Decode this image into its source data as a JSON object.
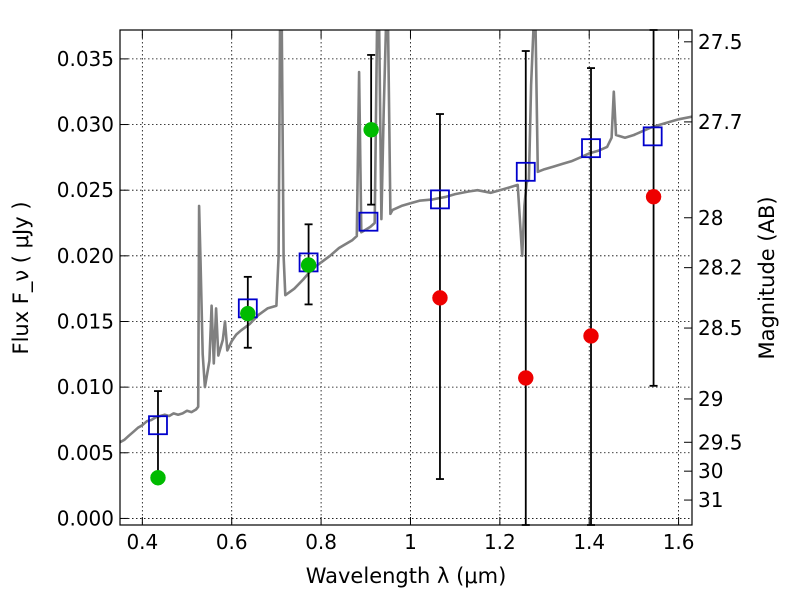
{
  "chart_data": {
    "type": "scatter",
    "xlabel": "Wavelength  λ (μm)",
    "ylabel": "Flux  F_ν  ( μJy )",
    "ylabel_right": "Magnitude (AB)",
    "xlim": [
      0.35,
      1.63
    ],
    "ylim": [
      -0.0005,
      0.0372
    ],
    "grid": true,
    "legend": "none",
    "x_ticks": [
      0.4,
      0.6,
      0.8,
      1.0,
      1.2,
      1.4,
      1.6
    ],
    "x_tick_labels": [
      "0.4",
      "0.6",
      "0.8",
      "1",
      "1.2",
      "1.4",
      "1.6"
    ],
    "y_ticks": [
      0.0,
      0.005,
      0.01,
      0.015,
      0.02,
      0.025,
      0.03,
      0.035
    ],
    "y_tick_labels": [
      "0.000",
      "0.005",
      "0.010",
      "0.015",
      "0.020",
      "0.025",
      "0.030",
      "0.035"
    ],
    "right_ticks": [
      {
        "label": "27.5",
        "flux": 0.0363
      },
      {
        "label": "27.7",
        "flux": 0.0302
      },
      {
        "label": "28",
        "flux": 0.0229
      },
      {
        "label": "28.2",
        "flux": 0.0191
      },
      {
        "label": "28.5",
        "flux": 0.0145
      },
      {
        "label": "29",
        "flux": 0.0091
      },
      {
        "label": "29.5",
        "flux": 0.0058
      },
      {
        "label": "30",
        "flux": 0.0036
      },
      {
        "label": "31",
        "flux": 0.0014
      }
    ],
    "series": [
      {
        "kind": "template_spectrum",
        "color": "#808080",
        "points": [
          [
            0.35,
            0.0058
          ],
          [
            0.36,
            0.006
          ],
          [
            0.37,
            0.0063
          ],
          [
            0.38,
            0.0066
          ],
          [
            0.39,
            0.0069
          ],
          [
            0.4,
            0.0071
          ],
          [
            0.41,
            0.0074
          ],
          [
            0.42,
            0.0075
          ],
          [
            0.43,
            0.0077
          ],
          [
            0.44,
            0.0078
          ],
          [
            0.45,
            0.0079
          ],
          [
            0.46,
            0.0078
          ],
          [
            0.47,
            0.008
          ],
          [
            0.48,
            0.0079
          ],
          [
            0.49,
            0.008
          ],
          [
            0.5,
            0.0082
          ],
          [
            0.51,
            0.0081
          ],
          [
            0.52,
            0.0083
          ],
          [
            0.525,
            0.0085
          ],
          [
            0.527,
            0.0238
          ],
          [
            0.53,
            0.02
          ],
          [
            0.535,
            0.0125
          ],
          [
            0.54,
            0.01
          ],
          [
            0.55,
            0.012
          ],
          [
            0.555,
            0.0162
          ],
          [
            0.56,
            0.0118
          ],
          [
            0.565,
            0.016
          ],
          [
            0.57,
            0.0124
          ],
          [
            0.58,
            0.0136
          ],
          [
            0.585,
            0.015
          ],
          [
            0.59,
            0.0128
          ],
          [
            0.6,
            0.0135
          ],
          [
            0.61,
            0.014
          ],
          [
            0.62,
            0.0143
          ],
          [
            0.64,
            0.0148
          ],
          [
            0.66,
            0.0155
          ],
          [
            0.68,
            0.016
          ],
          [
            0.7,
            0.0162
          ],
          [
            0.705,
            0.02
          ],
          [
            0.708,
            0.0372
          ],
          [
            0.712,
            0.0372
          ],
          [
            0.716,
            0.02
          ],
          [
            0.72,
            0.017
          ],
          [
            0.74,
            0.0175
          ],
          [
            0.76,
            0.0182
          ],
          [
            0.78,
            0.019
          ],
          [
            0.8,
            0.0195
          ],
          [
            0.82,
            0.02
          ],
          [
            0.84,
            0.0206
          ],
          [
            0.86,
            0.021
          ],
          [
            0.87,
            0.0212
          ],
          [
            0.88,
            0.0215
          ],
          [
            0.885,
            0.034
          ],
          [
            0.89,
            0.0218
          ],
          [
            0.9,
            0.022
          ],
          [
            0.91,
            0.0222
          ],
          [
            0.92,
            0.0225
          ],
          [
            0.925,
            0.0372
          ],
          [
            0.93,
            0.0372
          ],
          [
            0.935,
            0.0228
          ],
          [
            0.94,
            0.031
          ],
          [
            0.945,
            0.0372
          ],
          [
            0.95,
            0.0372
          ],
          [
            0.955,
            0.0232
          ],
          [
            0.96,
            0.0235
          ],
          [
            0.98,
            0.0238
          ],
          [
            1.0,
            0.024
          ],
          [
            1.02,
            0.0242
          ],
          [
            1.05,
            0.0243
          ],
          [
            1.08,
            0.0245
          ],
          [
            1.1,
            0.0247
          ],
          [
            1.13,
            0.0249
          ],
          [
            1.15,
            0.025
          ],
          [
            1.18,
            0.0248
          ],
          [
            1.2,
            0.025
          ],
          [
            1.22,
            0.0252
          ],
          [
            1.24,
            0.0254
          ],
          [
            1.25,
            0.02
          ],
          [
            1.255,
            0.0238
          ],
          [
            1.26,
            0.0256
          ],
          [
            1.265,
            0.0258
          ],
          [
            1.27,
            0.033
          ],
          [
            1.275,
            0.0372
          ],
          [
            1.28,
            0.0372
          ],
          [
            1.285,
            0.0264
          ],
          [
            1.3,
            0.0266
          ],
          [
            1.32,
            0.0268
          ],
          [
            1.34,
            0.027
          ],
          [
            1.36,
            0.0272
          ],
          [
            1.38,
            0.0275
          ],
          [
            1.4,
            0.0278
          ],
          [
            1.42,
            0.028
          ],
          [
            1.44,
            0.0283
          ],
          [
            1.45,
            0.029
          ],
          [
            1.455,
            0.0325
          ],
          [
            1.46,
            0.0292
          ],
          [
            1.48,
            0.029
          ],
          [
            1.5,
            0.0292
          ],
          [
            1.52,
            0.0295
          ],
          [
            1.54,
            0.0298
          ],
          [
            1.56,
            0.03
          ],
          [
            1.58,
            0.0302
          ],
          [
            1.6,
            0.0304
          ],
          [
            1.63,
            0.0306
          ]
        ]
      },
      {
        "kind": "model_boxes",
        "color": "#0000cc",
        "points": [
          {
            "x": 0.435,
            "y": 0.0071
          },
          {
            "x": 0.636,
            "y": 0.016
          },
          {
            "x": 0.772,
            "y": 0.0195
          },
          {
            "x": 0.906,
            "y": 0.0226
          },
          {
            "x": 1.066,
            "y": 0.0243
          },
          {
            "x": 1.258,
            "y": 0.0264
          },
          {
            "x": 1.404,
            "y": 0.0282
          },
          {
            "x": 1.542,
            "y": 0.0291
          }
        ]
      },
      {
        "kind": "detections",
        "color": "#00bb00",
        "points": [
          {
            "x": 0.435,
            "y": 0.0031,
            "err_low": 0.0031,
            "err_high": 0.0097
          },
          {
            "x": 0.636,
            "y": 0.0156,
            "err_low": 0.013,
            "err_high": 0.0184
          },
          {
            "x": 0.772,
            "y": 0.0193,
            "err_low": 0.0163,
            "err_high": 0.0224
          },
          {
            "x": 0.912,
            "y": 0.0296,
            "err_low": 0.0239,
            "err_high": 0.0353
          }
        ]
      },
      {
        "kind": "upper_limits",
        "color": "#ee0000",
        "points": [
          {
            "x": 1.066,
            "y": 0.0168,
            "err_low": 0.003,
            "err_high": 0.0308
          },
          {
            "x": 1.258,
            "y": 0.0107,
            "err_low": -0.0005,
            "err_high": 0.0356
          },
          {
            "x": 1.404,
            "y": 0.0139,
            "err_low": -0.0005,
            "err_high": 0.0343
          },
          {
            "x": 1.544,
            "y": 0.0245,
            "err_low": 0.0101,
            "err_high": 0.0372
          }
        ]
      }
    ]
  }
}
